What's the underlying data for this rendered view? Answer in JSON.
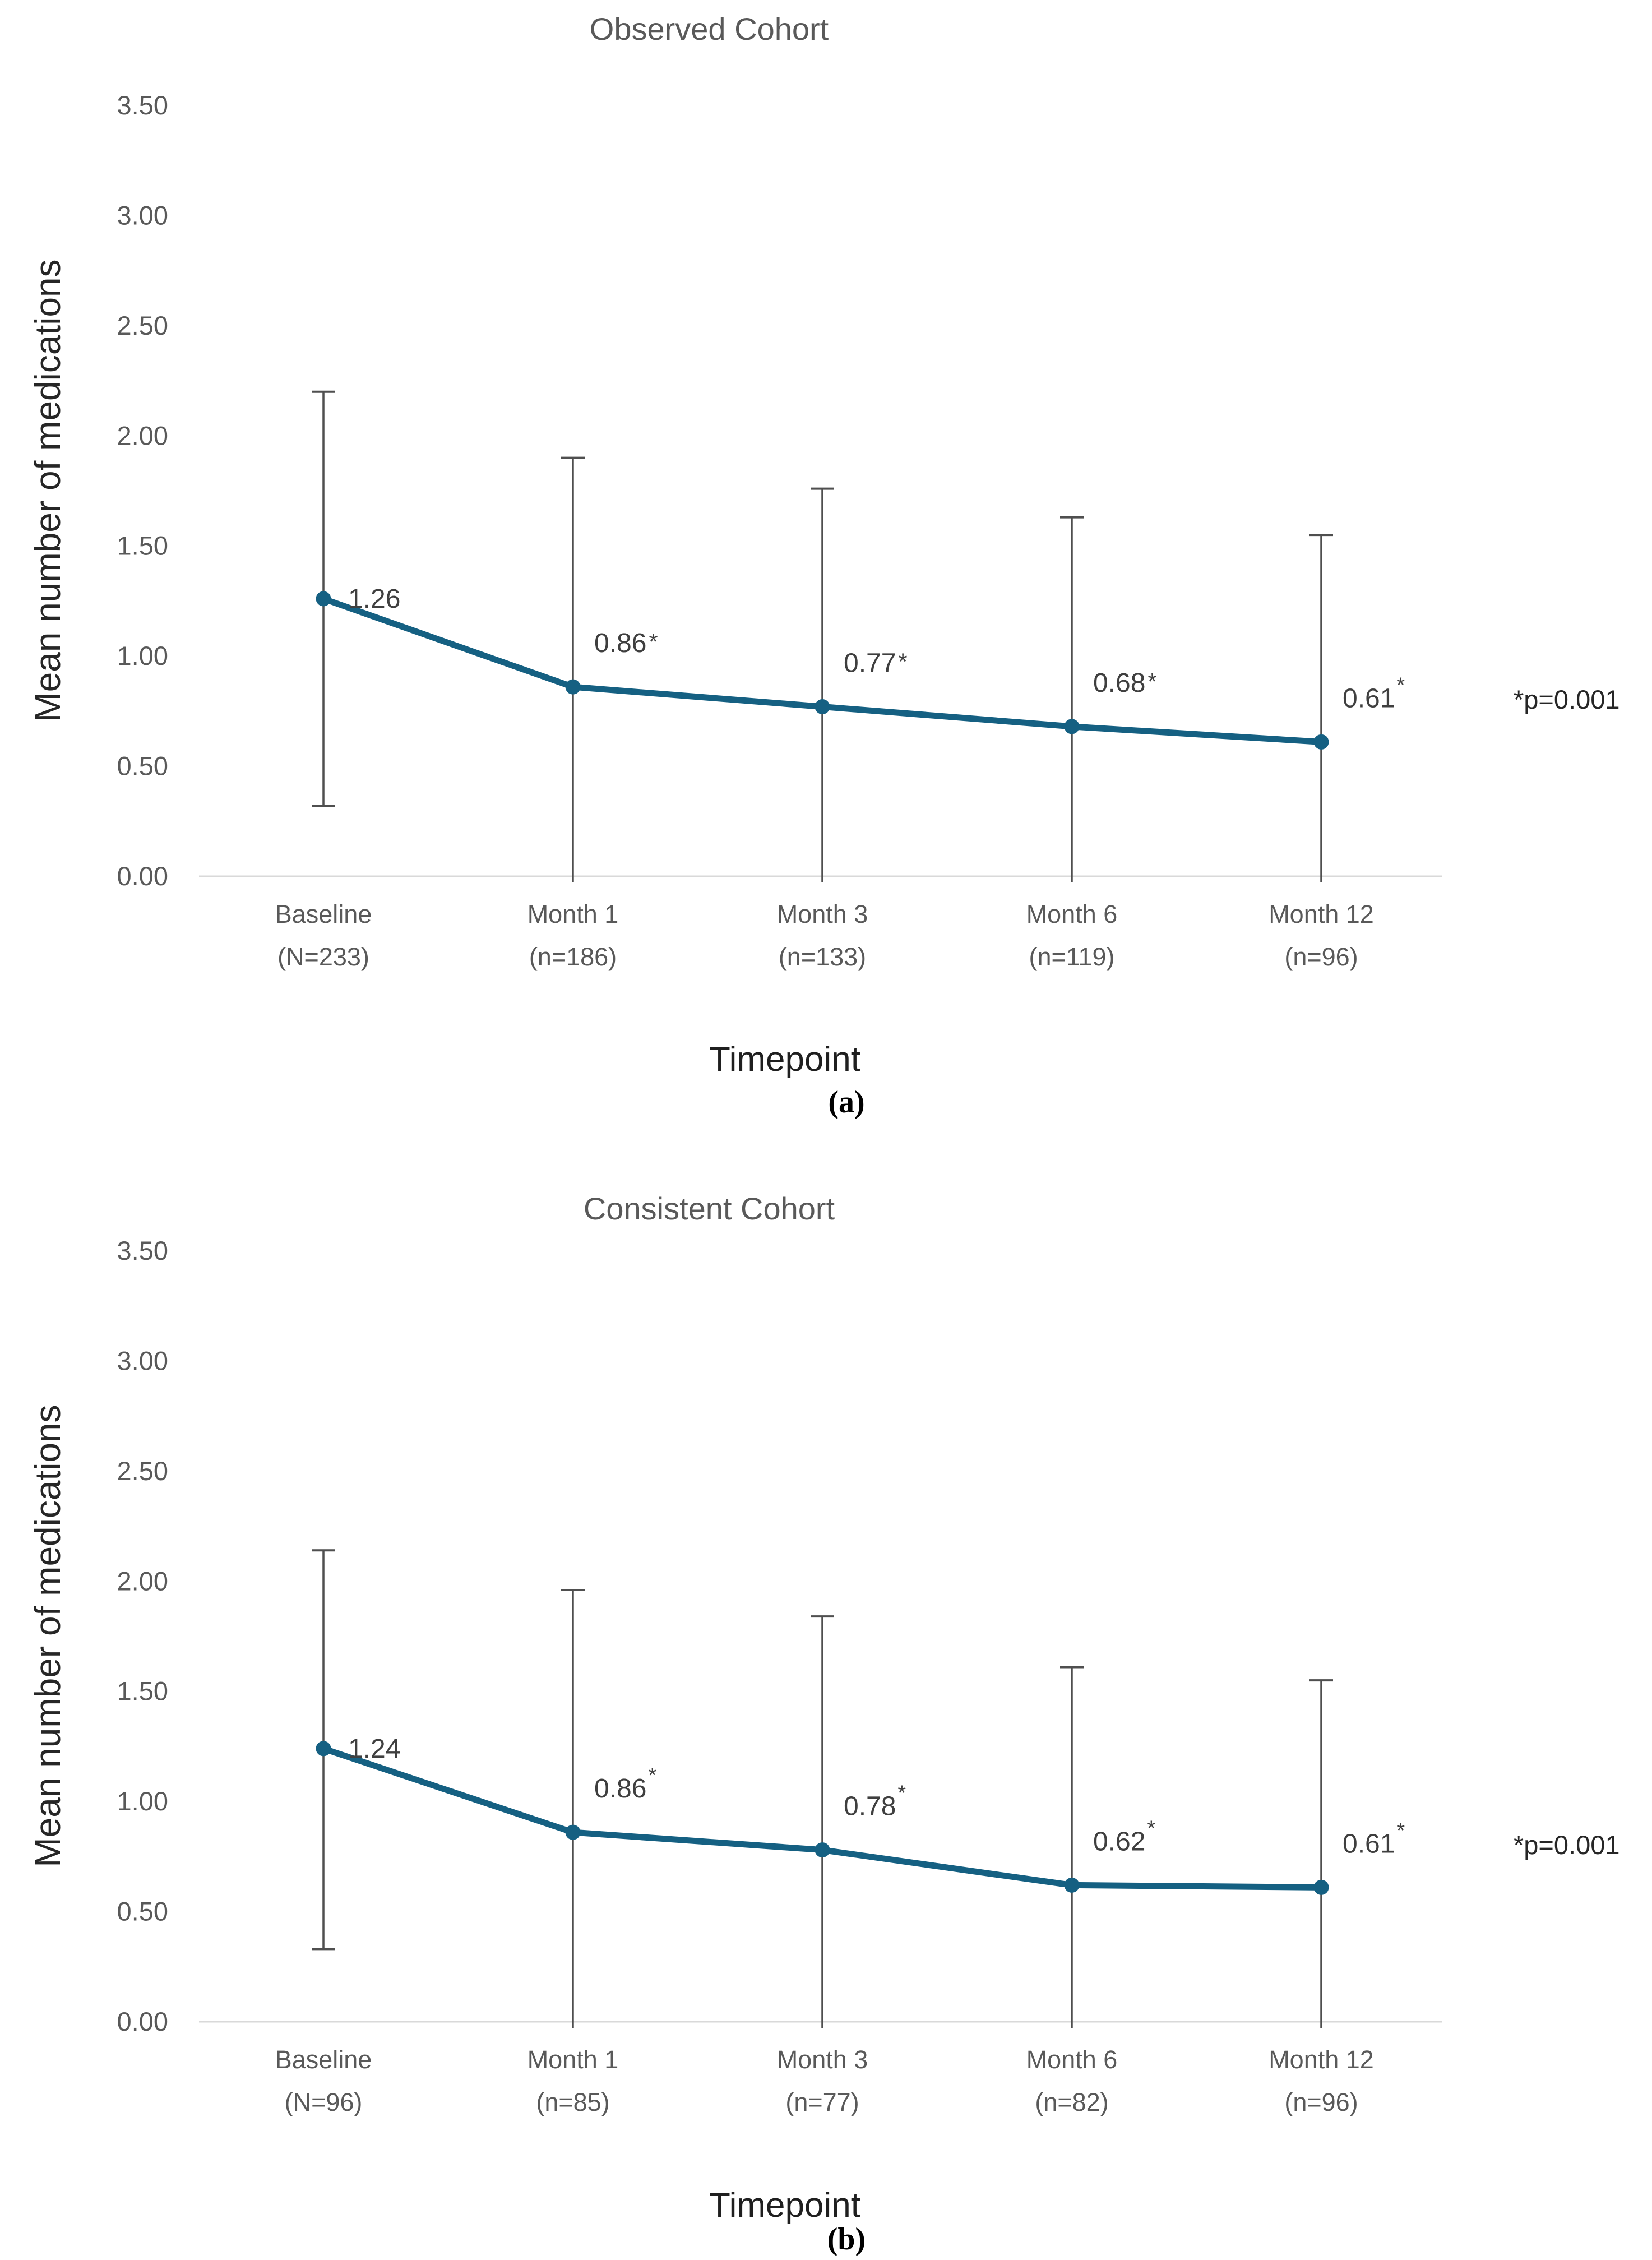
{
  "colors": {
    "series": "#156082",
    "error_bar": "#4f4f4f",
    "axis_line": "#d9d9d9",
    "tick_text": "#595959",
    "category_text": "#595959",
    "title_text": "#595959",
    "data_label_text": "#3f3f3f",
    "axis_title_text": "#262626",
    "note_text": "#262626",
    "panel_label_text": "#000000"
  },
  "chart_data": [
    {
      "type": "line",
      "title": "Observed Cohort",
      "xlabel": "Timepoint",
      "ylabel": "Mean number of medications",
      "panel_label": "(a)",
      "note": "*p=0.001",
      "ylim": [
        0.0,
        3.5
      ],
      "yticks": [
        "3.50",
        "3.00",
        "2.50",
        "2.00",
        "1.50",
        "1.00",
        "0.50",
        "0.00"
      ],
      "grid": false,
      "legend": false,
      "categories": [
        "Baseline",
        "Month 1",
        "Month 3",
        "Month 6",
        "Month 12"
      ],
      "category_counts": [
        "(N=233)",
        "(n=186)",
        "(n=133)",
        "(n=119)",
        "(n=96)"
      ],
      "series": [
        {
          "name": "Mean number of medications",
          "values": [
            1.26,
            0.86,
            0.77,
            0.68,
            0.61
          ],
          "data_labels": [
            "1.26",
            "0.86",
            "0.77",
            "0.68",
            "0.61"
          ],
          "asterisk": [
            "none",
            "inline",
            "inline",
            "inline",
            "super"
          ],
          "error_upper": [
            2.2,
            1.9,
            1.76,
            1.63,
            1.55
          ],
          "error_lower": [
            0.32,
            null,
            null,
            null,
            null
          ]
        }
      ]
    },
    {
      "type": "line",
      "title": "Consistent Cohort",
      "xlabel": "Timepoint",
      "ylabel": "Mean number of medications",
      "panel_label": "(b)",
      "note": "*p=0.001",
      "ylim": [
        0.0,
        3.5
      ],
      "yticks": [
        "3.50",
        "3.00",
        "2.50",
        "2.00",
        "1.50",
        "1.00",
        "0.50",
        "0.00"
      ],
      "grid": false,
      "legend": false,
      "categories": [
        "Baseline",
        "Month 1",
        "Month 3",
        "Month 6",
        "Month 12"
      ],
      "category_counts": [
        "(N=96)",
        "(n=85)",
        "(n=77)",
        "(n=82)",
        "(n=96)"
      ],
      "series": [
        {
          "name": "Mean number of medications",
          "values": [
            1.24,
            0.86,
            0.78,
            0.62,
            0.61
          ],
          "data_labels": [
            "1.24",
            "0.86",
            "0.78",
            "0.62",
            "0.61"
          ],
          "asterisk": [
            "none",
            "super",
            "super",
            "super",
            "super"
          ],
          "error_upper": [
            2.14,
            1.96,
            1.84,
            1.61,
            1.55
          ],
          "error_lower": [
            0.33,
            null,
            null,
            null,
            null
          ]
        }
      ]
    }
  ]
}
